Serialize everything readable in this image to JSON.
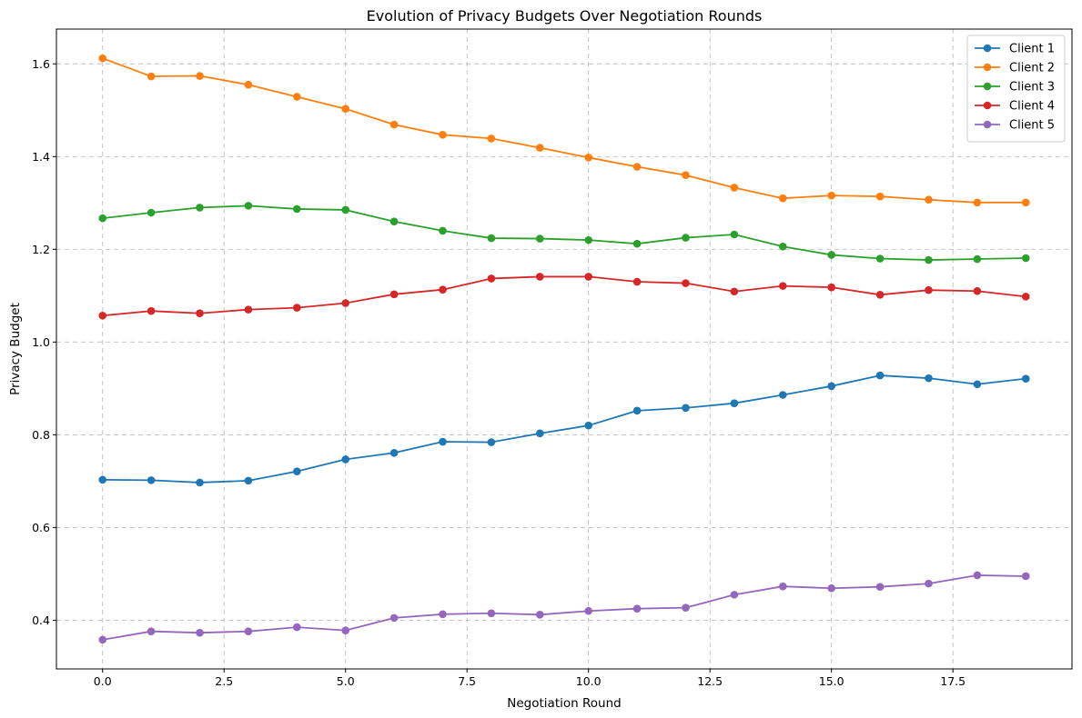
{
  "chart_data": {
    "type": "line",
    "title": "Evolution of Privacy Budgets Over Negotiation Rounds",
    "xlabel": "Negotiation Round",
    "ylabel": "Privacy Budget",
    "xlim": [
      -0.95,
      19.95
    ],
    "ylim": [
      0.295,
      1.675
    ],
    "xticks": [
      0.0,
      2.5,
      5.0,
      7.5,
      10.0,
      12.5,
      15.0,
      17.5
    ],
    "xtick_labels": [
      "0.0",
      "2.5",
      "5.0",
      "7.5",
      "10.0",
      "12.5",
      "15.0",
      "17.5"
    ],
    "yticks": [
      0.4,
      0.6,
      0.8,
      1.0,
      1.2,
      1.4,
      1.6
    ],
    "ytick_labels": [
      "0.4",
      "0.6",
      "0.8",
      "1.0",
      "1.2",
      "1.4",
      "1.6"
    ],
    "grid": true,
    "legend_position": "top-right",
    "x": [
      0,
      1,
      2,
      3,
      4,
      5,
      6,
      7,
      8,
      9,
      10,
      11,
      12,
      13,
      14,
      15,
      16,
      17,
      18,
      19
    ],
    "series": [
      {
        "name": "Client 1",
        "color": "#1f77b4",
        "values": [
          0.703,
          0.702,
          0.697,
          0.701,
          0.721,
          0.747,
          0.761,
          0.785,
          0.784,
          0.803,
          0.82,
          0.852,
          0.858,
          0.868,
          0.886,
          0.905,
          0.928,
          0.922,
          0.909,
          0.921
        ]
      },
      {
        "name": "Client 2",
        "color": "#ff7f0e",
        "values": [
          1.612,
          1.573,
          1.574,
          1.555,
          1.529,
          1.503,
          1.469,
          1.447,
          1.439,
          1.419,
          1.398,
          1.378,
          1.36,
          1.333,
          1.31,
          1.316,
          1.314,
          1.307,
          1.301,
          1.301
        ]
      },
      {
        "name": "Client 3",
        "color": "#2ca02c",
        "values": [
          1.267,
          1.279,
          1.29,
          1.294,
          1.287,
          1.285,
          1.26,
          1.24,
          1.224,
          1.223,
          1.22,
          1.212,
          1.225,
          1.232,
          1.206,
          1.188,
          1.18,
          1.177,
          1.179,
          1.181
        ]
      },
      {
        "name": "Client 4",
        "color": "#d62728",
        "values": [
          1.057,
          1.067,
          1.062,
          1.07,
          1.074,
          1.084,
          1.103,
          1.113,
          1.137,
          1.141,
          1.141,
          1.13,
          1.127,
          1.109,
          1.121,
          1.118,
          1.102,
          1.112,
          1.11,
          1.098
        ]
      },
      {
        "name": "Client 5",
        "color": "#9467bd",
        "values": [
          0.358,
          0.376,
          0.373,
          0.376,
          0.385,
          0.378,
          0.405,
          0.413,
          0.415,
          0.412,
          0.42,
          0.425,
          0.427,
          0.455,
          0.473,
          0.469,
          0.472,
          0.479,
          0.497,
          0.495
        ]
      }
    ]
  }
}
